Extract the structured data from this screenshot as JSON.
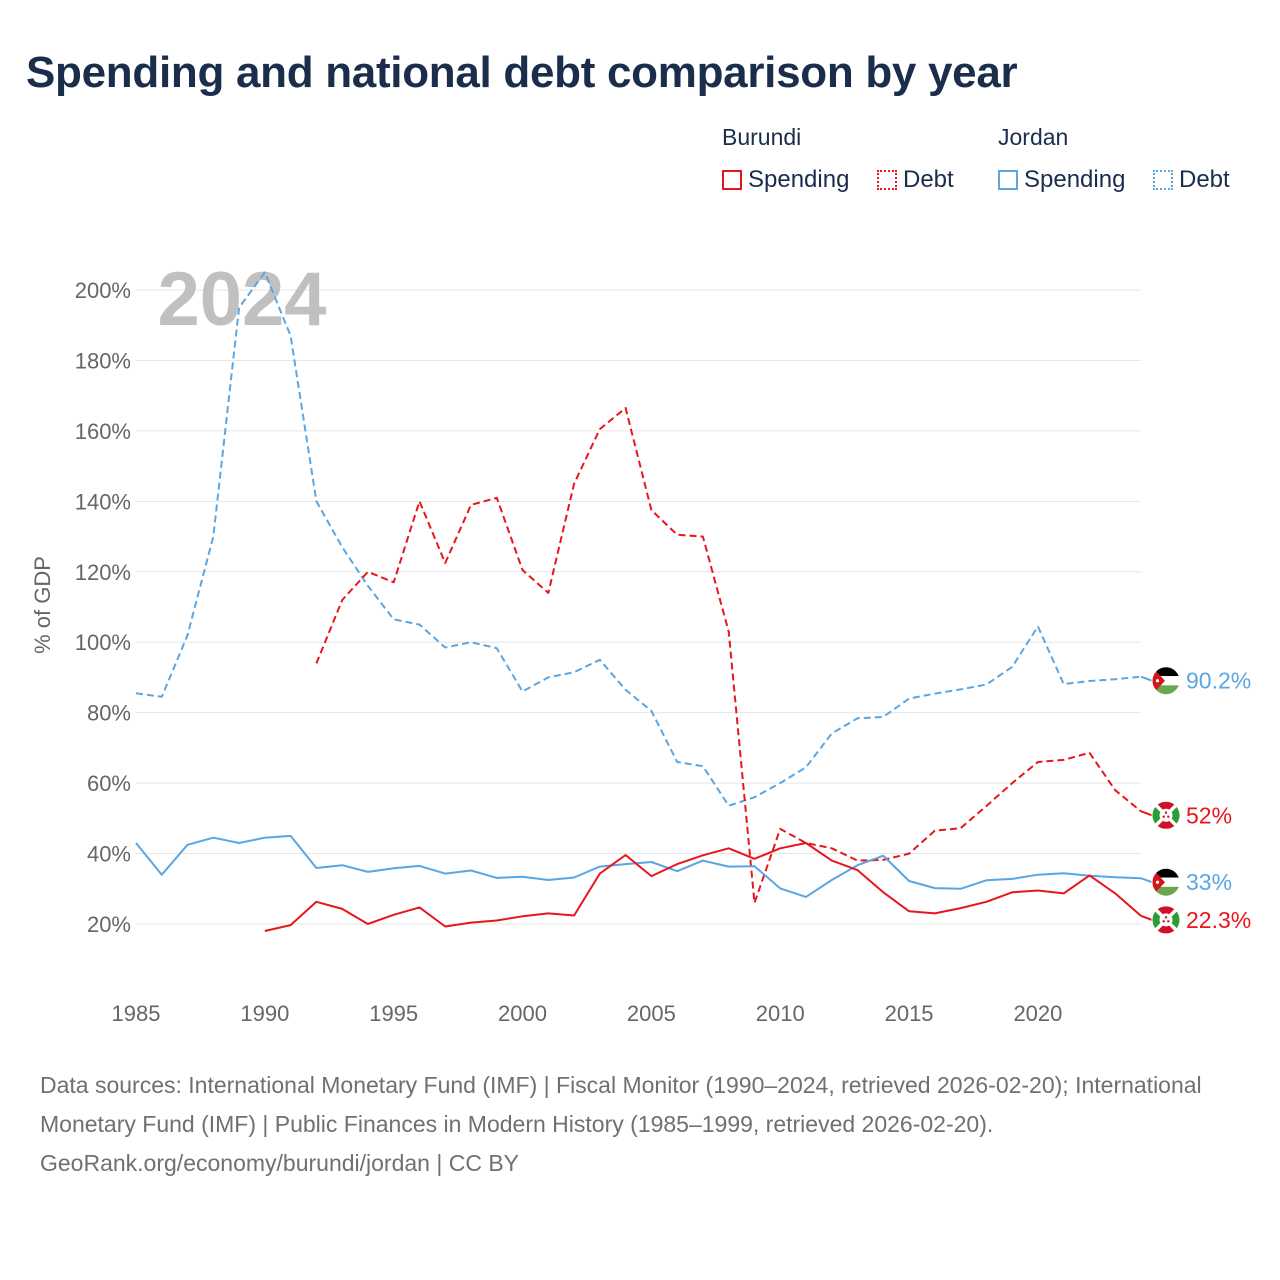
{
  "title": "Spending and national debt comparison by year",
  "year_watermark": "2024",
  "legend": {
    "groups": [
      {
        "country": "Burundi",
        "color": "#e8161b",
        "items": [
          {
            "label": "Spending",
            "style": "solid"
          },
          {
            "label": "Debt",
            "style": "dotted"
          }
        ]
      },
      {
        "country": "Jordan",
        "color": "#5aa6e2",
        "items": [
          {
            "label": "Spending",
            "style": "solid"
          },
          {
            "label": "Debt",
            "style": "dotted"
          }
        ]
      }
    ]
  },
  "chart_data": {
    "type": "line",
    "ylabel": "% of GDP",
    "xlim": [
      1985,
      2024
    ],
    "ylim": [
      0,
      200
    ],
    "yticks": [
      20,
      40,
      60,
      80,
      100,
      120,
      140,
      160,
      180,
      200
    ],
    "ytick_labels": [
      "20%",
      "40%",
      "60%",
      "80%",
      "100%",
      "120%",
      "140%",
      "160%",
      "180%",
      "200%"
    ],
    "xticks": [
      1985,
      1990,
      1995,
      2000,
      2005,
      2010,
      2015,
      2020
    ],
    "xtick_labels": [
      "1985",
      "1990",
      "1995",
      "2000",
      "2005",
      "2010",
      "2015",
      "2020"
    ],
    "grid": true,
    "series": [
      {
        "name": "Jordan Debt",
        "country": "Jordan",
        "metric": "Debt",
        "color": "#5aa6e2",
        "dash": true,
        "x": [
          1985,
          1986,
          1987,
          1988,
          1989,
          1990,
          1991,
          1992,
          1993,
          1994,
          1995,
          1996,
          1997,
          1998,
          1999,
          2000,
          2001,
          2002,
          2003,
          2004,
          2005,
          2006,
          2007,
          2008,
          2009,
          2010,
          2011,
          2012,
          2013,
          2014,
          2015,
          2016,
          2017,
          2018,
          2019,
          2020,
          2021,
          2022,
          2023,
          2024
        ],
        "y": [
          85.5,
          84.5,
          102,
          130,
          195,
          205,
          187,
          140,
          127,
          116,
          106.5,
          105,
          98.5,
          100,
          98.3,
          86,
          90,
          91.5,
          95,
          86.5,
          80.5,
          66,
          64.8,
          53.6,
          56,
          60,
          64.5,
          74.1,
          78.4,
          78.8,
          84,
          85.4,
          86.6,
          88,
          93,
          104.5,
          88.1,
          89,
          89.5,
          90.2
        ],
        "end_label": "90.2%"
      },
      {
        "name": "Burundi Debt",
        "country": "Burundi",
        "metric": "Debt",
        "color": "#e8161b",
        "dash": true,
        "x": [
          1992,
          1993,
          1994,
          1995,
          1996,
          1997,
          1998,
          1999,
          2000,
          2001,
          2002,
          2003,
          2004,
          2005,
          2006,
          2007,
          2008,
          2009,
          2010,
          2011,
          2012,
          2013,
          2014,
          2015,
          2016,
          2017,
          2018,
          2019,
          2020,
          2021,
          2022,
          2023,
          2024
        ],
        "y": [
          94,
          112,
          120,
          117,
          140,
          122.5,
          139,
          141,
          120.5,
          114,
          145,
          160.5,
          166.5,
          137.5,
          130.5,
          130,
          103,
          26,
          47,
          43,
          41.5,
          38,
          38.2,
          40,
          46.5,
          47.2,
          53.5,
          60,
          66,
          66.6,
          68.6,
          58,
          52
        ],
        "end_label": "52%"
      },
      {
        "name": "Jordan Spending",
        "country": "Jordan",
        "metric": "Spending",
        "color": "#5aa6e2",
        "dash": false,
        "x": [
          1985,
          1986,
          1987,
          1988,
          1989,
          1990,
          1991,
          1992,
          1993,
          1994,
          1995,
          1996,
          1997,
          1998,
          1999,
          2000,
          2001,
          2002,
          2003,
          2004,
          2005,
          2006,
          2007,
          2008,
          2009,
          2010,
          2011,
          2012,
          2013,
          2014,
          2015,
          2016,
          2017,
          2018,
          2019,
          2020,
          2021,
          2022,
          2023,
          2024
        ],
        "y": [
          43,
          34,
          42.5,
          44.5,
          43,
          44.5,
          45,
          35.9,
          36.7,
          34.8,
          35.8,
          36.5,
          34.3,
          35.2,
          33.1,
          33.4,
          32.5,
          33.2,
          36.3,
          37,
          37.6,
          35,
          38,
          36.3,
          36.4,
          30.1,
          27.7,
          32.5,
          36.7,
          39.4,
          32.2,
          30.2,
          30,
          32.4,
          32.8,
          34,
          34.4,
          33.7,
          33.3,
          33
        ],
        "end_label": "33%"
      },
      {
        "name": "Burundi Spending",
        "country": "Burundi",
        "metric": "Spending",
        "color": "#e8161b",
        "dash": false,
        "x": [
          1990,
          1991,
          1992,
          1993,
          1994,
          1995,
          1996,
          1997,
          1998,
          1999,
          2000,
          2001,
          2002,
          2003,
          2004,
          2005,
          2006,
          2007,
          2008,
          2009,
          2010,
          2011,
          2012,
          2013,
          2014,
          2015,
          2016,
          2017,
          2018,
          2019,
          2020,
          2021,
          2022,
          2023,
          2024
        ],
        "y": [
          18,
          19.7,
          26.3,
          24.3,
          20,
          22.6,
          24.7,
          19.3,
          20.4,
          21,
          22.2,
          23,
          22.4,
          34.3,
          39.6,
          33.6,
          37,
          39.5,
          41.5,
          38.5,
          41.5,
          43,
          38,
          35.3,
          29,
          23.6,
          23,
          24.5,
          26.3,
          29,
          29.5,
          28.7,
          33.8,
          28.7,
          22.3
        ],
        "end_label": "22.3%"
      }
    ]
  },
  "footer": {
    "sources": "Data sources: International Monetary Fund (IMF) | Fiscal Monitor (1990–2024, retrieved 2026-02-20); International Monetary Fund (IMF) | Public Finances in Modern History (1985–1999, retrieved 2026-02-20).",
    "attribution": "GeoRank.org/economy/burundi/jordan | CC BY"
  }
}
